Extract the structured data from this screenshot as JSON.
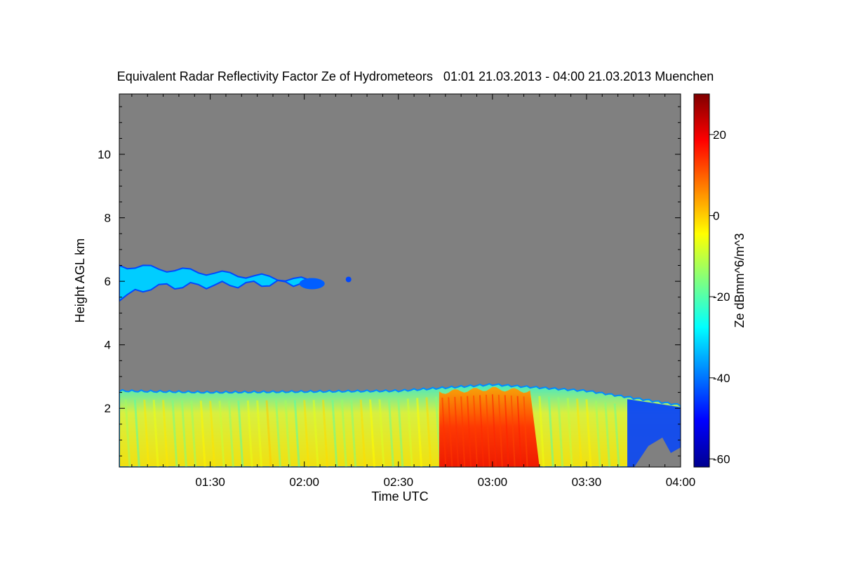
{
  "chart_data": {
    "type": "heatmap",
    "title": "Equivalent Radar Reflectivity Factor Ze of Hydrometeors   01:01 21.03.2013 - 04:00 21.03.2013 Muenchen",
    "xlabel": "Time UTC",
    "ylabel": "Height AGL km",
    "x_range": [
      "01:01",
      "04:00"
    ],
    "xlim_minutes_utc": [
      61,
      240
    ],
    "x_ticks": [
      "01:30",
      "02:00",
      "02:30",
      "03:00",
      "03:30",
      "04:00"
    ],
    "ylim": [
      0.15,
      11.9
    ],
    "y_ticks": [
      2,
      4,
      6,
      8,
      10
    ],
    "background_color": "#808080",
    "colorbar": {
      "label": "Ze dBmm^6/m^3",
      "range": [
        -62,
        30
      ],
      "ticks": [
        20,
        0,
        -20,
        -40,
        -60
      ],
      "colormap": "jet"
    },
    "features": [
      {
        "name": "upper cloud layer",
        "x_start": "01:01",
        "x_end": "02:15",
        "base_km": 5.8,
        "top_km": 6.5,
        "ze_dbz": -32
      },
      {
        "name": "lower precipitation layer",
        "x_start": "01:01",
        "x_end": "04:00",
        "top_km": [
          2.55,
          2.5,
          2.55,
          2.75,
          2.55,
          2.1
        ],
        "top_at": [
          "01:01",
          "01:30",
          "02:30",
          "03:00",
          "03:30",
          "04:00"
        ],
        "ze_dbz_typical": -10,
        "ze_dbz_max": 18,
        "max_period": [
          "02:43",
          "03:12"
        ]
      }
    ]
  }
}
